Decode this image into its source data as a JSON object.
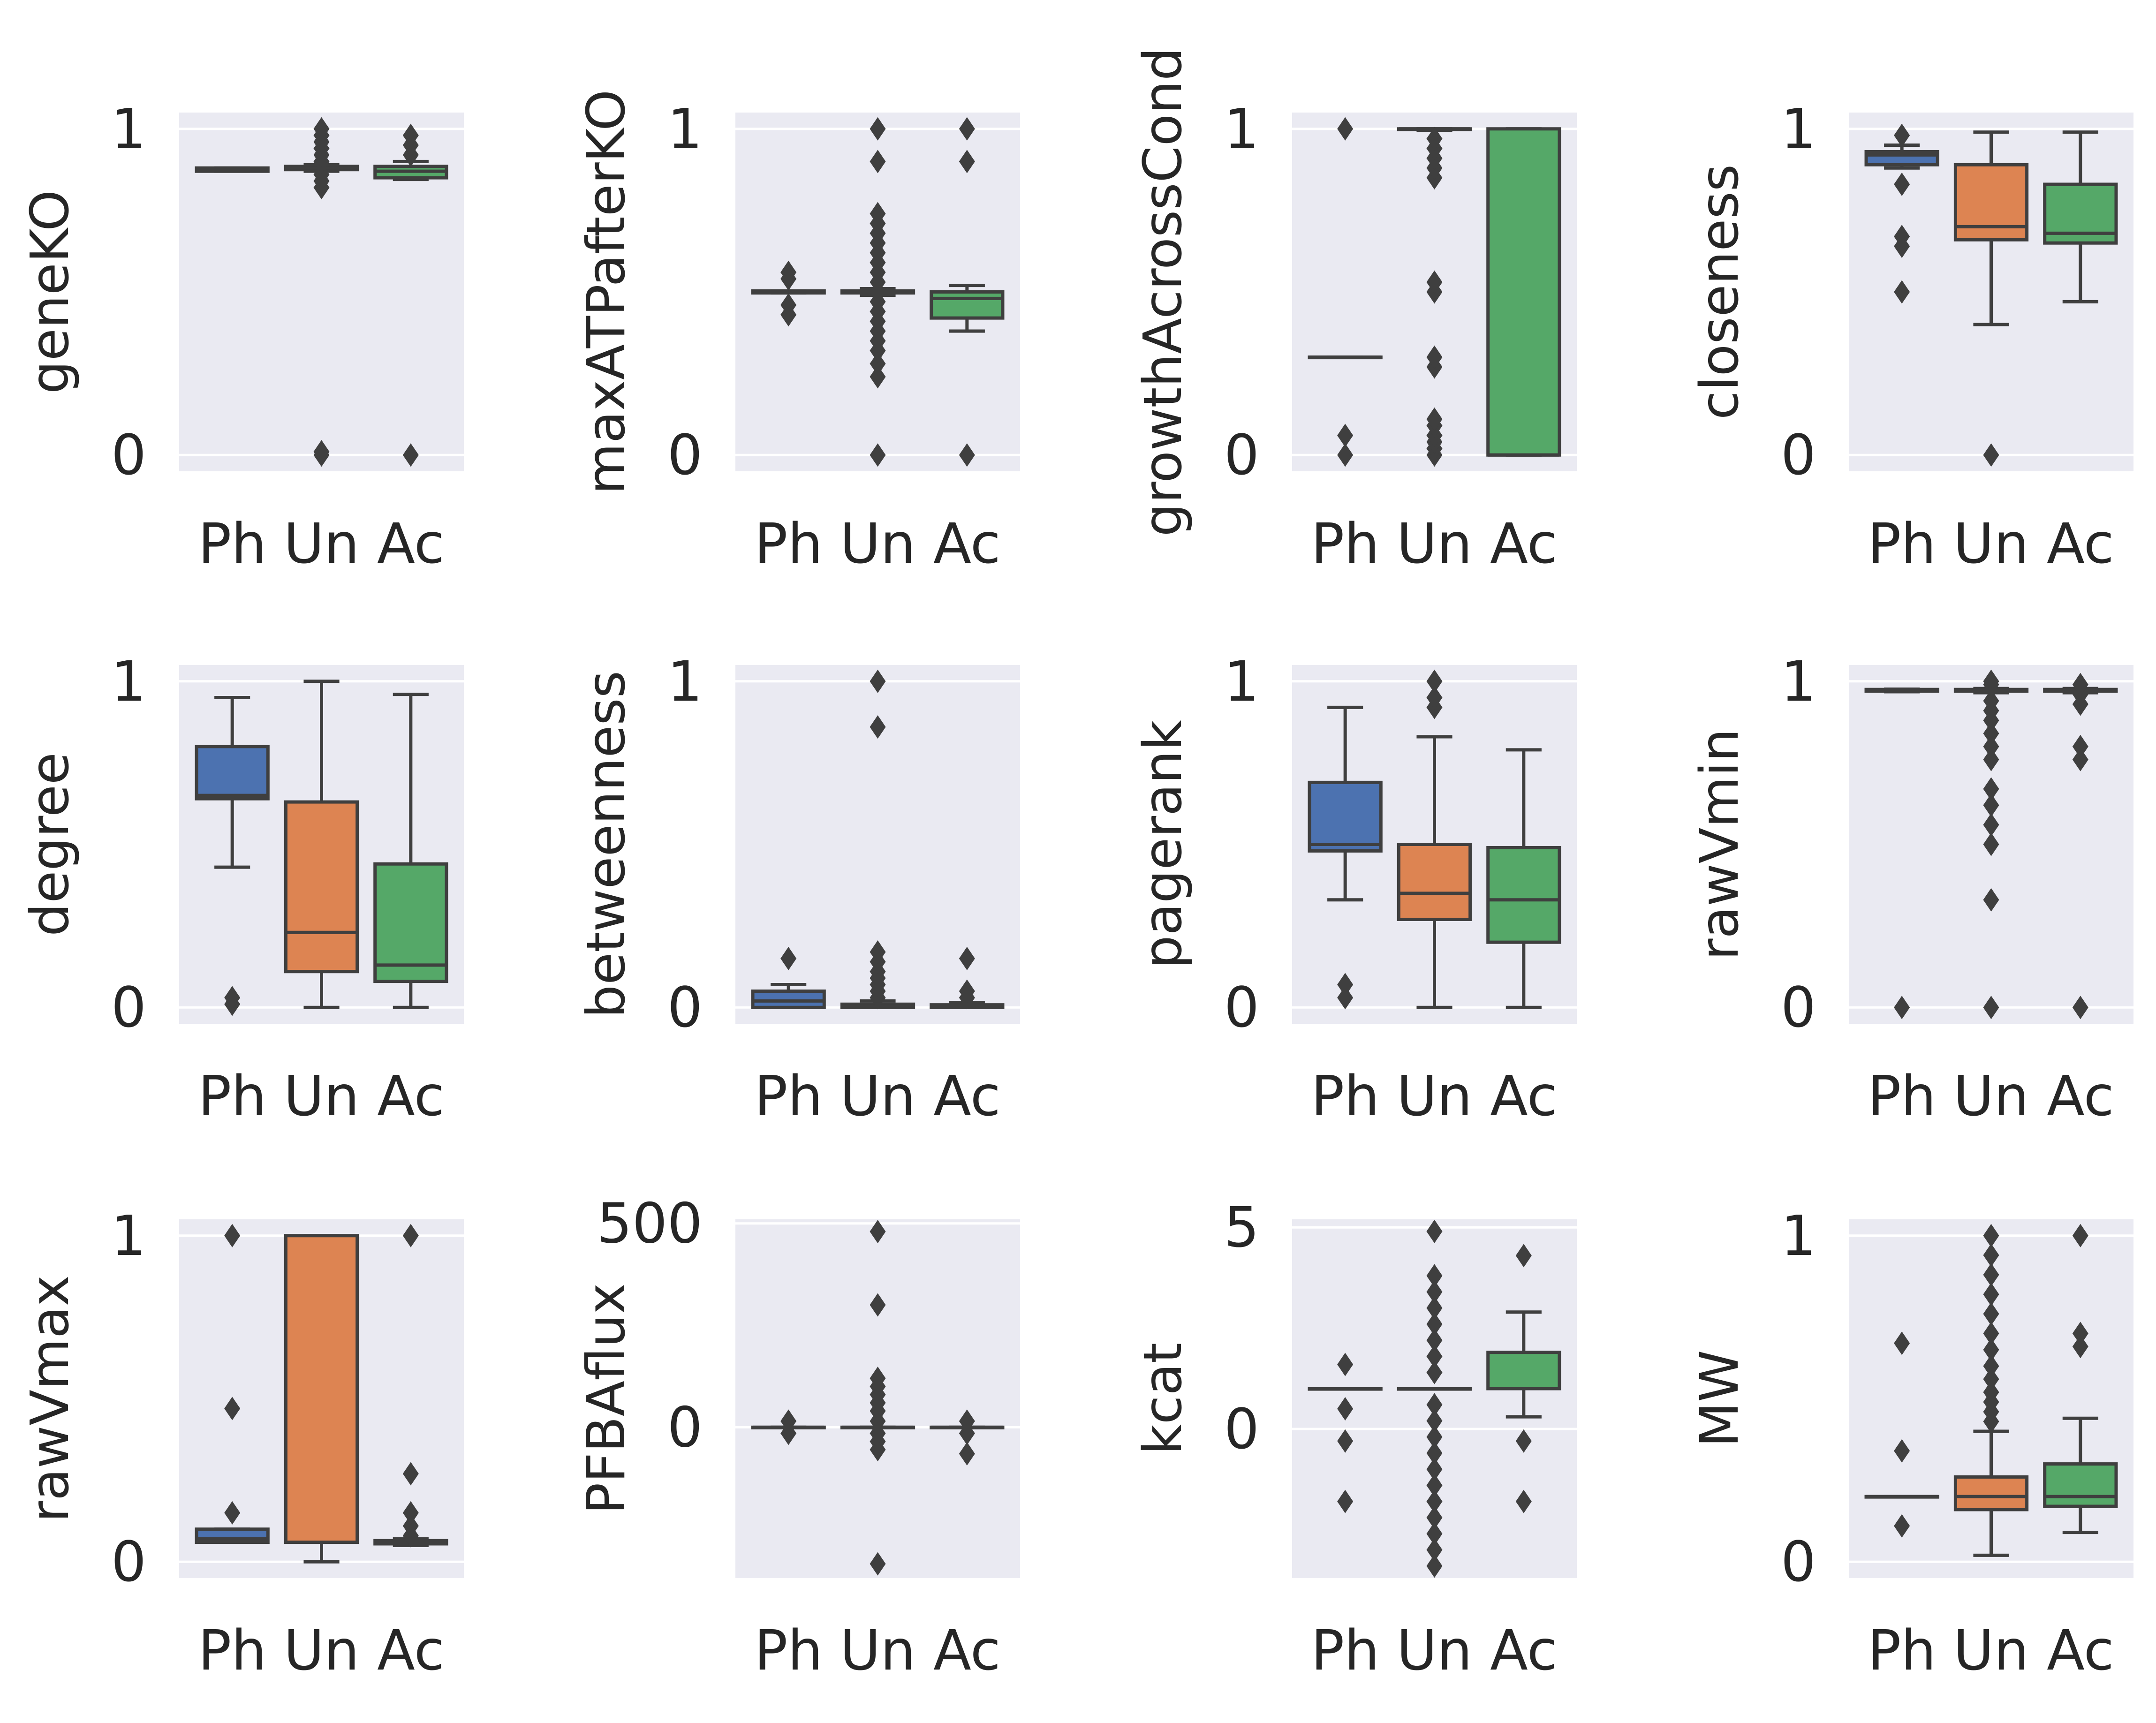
{
  "figure": {
    "panel_bg": "#eaeaf2",
    "grid_color": "#ffffff",
    "line_color": "#3f3f3f"
  },
  "chart_data": [
    {
      "type": "box",
      "title": "",
      "xlabel": "",
      "ylabel": "geneKO",
      "categories": [
        "Ph",
        "Un",
        "Ac"
      ],
      "ylim": [
        -0.05,
        1.05
      ],
      "yticks": [
        0,
        1
      ],
      "ytick_labels": [
        "0",
        "1"
      ],
      "boxes": [
        {
          "category": "Ph",
          "color": "#4c72b0",
          "q1": 0.87,
          "median": 0.875,
          "q3": 0.88,
          "whisker_low": 0.87,
          "whisker_high": 0.88,
          "outliers": []
        },
        {
          "category": "Un",
          "color": "#dd8452",
          "q1": 0.875,
          "median": 0.88,
          "q3": 0.885,
          "whisker_low": 0.87,
          "whisker_high": 0.89,
          "outliers": [
            0.0,
            0.01,
            0.82,
            0.84,
            0.86,
            0.9,
            0.92,
            0.94,
            0.96,
            0.98,
            1.0
          ]
        },
        {
          "category": "Ac",
          "color": "#55a868",
          "q1": 0.85,
          "median": 0.87,
          "q3": 0.885,
          "whisker_low": 0.845,
          "whisker_high": 0.9,
          "outliers": [
            0.0,
            0.92,
            0.95,
            0.98
          ]
        }
      ]
    },
    {
      "type": "box",
      "title": "",
      "xlabel": "",
      "ylabel": "maxATPafterKO",
      "categories": [
        "Ph",
        "Un",
        "Ac"
      ],
      "ylim": [
        -0.05,
        1.05
      ],
      "yticks": [
        0,
        1
      ],
      "ytick_labels": [
        "0",
        "1"
      ],
      "boxes": [
        {
          "category": "Ph",
          "color": "#4c72b0",
          "q1": 0.497,
          "median": 0.5,
          "q3": 0.503,
          "whisker_low": 0.497,
          "whisker_high": 0.503,
          "outliers": [
            0.43,
            0.46,
            0.54,
            0.56
          ]
        },
        {
          "category": "Un",
          "color": "#dd8452",
          "q1": 0.497,
          "median": 0.5,
          "q3": 0.503,
          "whisker_low": 0.49,
          "whisker_high": 0.51,
          "outliers": [
            0.0,
            0.24,
            0.28,
            0.32,
            0.35,
            0.38,
            0.41,
            0.44,
            0.47,
            0.53,
            0.56,
            0.59,
            0.62,
            0.65,
            0.68,
            0.71,
            0.74,
            0.9,
            1.0
          ]
        },
        {
          "category": "Ac",
          "color": "#55a868",
          "q1": 0.42,
          "median": 0.48,
          "q3": 0.5,
          "whisker_low": 0.38,
          "whisker_high": 0.52,
          "outliers": [
            0.0,
            0.9,
            1.0
          ]
        }
      ]
    },
    {
      "type": "box",
      "title": "",
      "xlabel": "",
      "ylabel": "growthAcrossCond",
      "categories": [
        "Ph",
        "Un",
        "Ac"
      ],
      "ylim": [
        -0.05,
        1.05
      ],
      "yticks": [
        0,
        1
      ],
      "ytick_labels": [
        "0",
        "1"
      ],
      "boxes": [
        {
          "category": "Ph",
          "color": "#4c72b0",
          "q1": 0.3,
          "median": 0.3,
          "q3": 0.3,
          "whisker_low": 0.3,
          "whisker_high": 0.3,
          "outliers": [
            0.0,
            0.06,
            1.0
          ]
        },
        {
          "category": "Un",
          "color": "#dd8452",
          "q1": 0.998,
          "median": 1.0,
          "q3": 1.0,
          "whisker_low": 0.996,
          "whisker_high": 1.0,
          "outliers": [
            0.0,
            0.02,
            0.04,
            0.06,
            0.09,
            0.11,
            0.27,
            0.3,
            0.5,
            0.53,
            0.85,
            0.88,
            0.91,
            0.94,
            0.97
          ]
        },
        {
          "category": "Ac",
          "color": "#55a868",
          "q1": 0.0,
          "median": 0.0,
          "q3": 1.0,
          "whisker_low": 0.0,
          "whisker_high": 1.0,
          "outliers": []
        }
      ]
    },
    {
      "type": "box",
      "title": "",
      "xlabel": "",
      "ylabel": "closeness",
      "categories": [
        "Ph",
        "Un",
        "Ac"
      ],
      "ylim": [
        -0.05,
        1.05
      ],
      "yticks": [
        0,
        1
      ],
      "ytick_labels": [
        "0",
        "1"
      ],
      "boxes": [
        {
          "category": "Ph",
          "color": "#4c72b0",
          "q1": 0.89,
          "median": 0.92,
          "q3": 0.93,
          "whisker_low": 0.88,
          "whisker_high": 0.95,
          "outliers": [
            0.5,
            0.64,
            0.67,
            0.83,
            0.98
          ]
        },
        {
          "category": "Un",
          "color": "#dd8452",
          "q1": 0.66,
          "median": 0.7,
          "q3": 0.89,
          "whisker_low": 0.4,
          "whisker_high": 0.99,
          "outliers": [
            0.0
          ]
        },
        {
          "category": "Ac",
          "color": "#55a868",
          "q1": 0.65,
          "median": 0.68,
          "q3": 0.83,
          "whisker_low": 0.47,
          "whisker_high": 0.99,
          "outliers": []
        }
      ]
    },
    {
      "type": "box",
      "title": "",
      "xlabel": "",
      "ylabel": "degree",
      "categories": [
        "Ph",
        "Un",
        "Ac"
      ],
      "ylim": [
        -0.05,
        1.05
      ],
      "yticks": [
        0,
        1
      ],
      "ytick_labels": [
        "0",
        "1"
      ],
      "boxes": [
        {
          "category": "Ph",
          "color": "#4c72b0",
          "q1": 0.64,
          "median": 0.65,
          "q3": 0.8,
          "whisker_low": 0.43,
          "whisker_high": 0.95,
          "outliers": [
            0.01,
            0.03
          ]
        },
        {
          "category": "Un",
          "color": "#dd8452",
          "q1": 0.11,
          "median": 0.23,
          "q3": 0.63,
          "whisker_low": 0.0,
          "whisker_high": 1.0,
          "outliers": []
        },
        {
          "category": "Ac",
          "color": "#55a868",
          "q1": 0.08,
          "median": 0.13,
          "q3": 0.44,
          "whisker_low": 0.0,
          "whisker_high": 0.96,
          "outliers": []
        }
      ]
    },
    {
      "type": "box",
      "title": "",
      "xlabel": "",
      "ylabel": "betweenness",
      "categories": [
        "Ph",
        "Un",
        "Ac"
      ],
      "ylim": [
        -0.05,
        1.05
      ],
      "yticks": [
        0,
        1
      ],
      "ytick_labels": [
        "0",
        "1"
      ],
      "boxes": [
        {
          "category": "Ph",
          "color": "#4c72b0",
          "q1": 0.0,
          "median": 0.02,
          "q3": 0.05,
          "whisker_low": 0.0,
          "whisker_high": 0.07,
          "outliers": [
            0.15
          ]
        },
        {
          "category": "Un",
          "color": "#dd8452",
          "q1": 0.0,
          "median": 0.005,
          "q3": 0.01,
          "whisker_low": 0.0,
          "whisker_high": 0.02,
          "outliers": [
            0.03,
            0.05,
            0.07,
            0.09,
            0.11,
            0.14,
            0.17,
            0.86,
            1.0
          ]
        },
        {
          "category": "Ac",
          "color": "#55a868",
          "q1": 0.0,
          "median": 0.003,
          "q3": 0.008,
          "whisker_low": 0.0,
          "whisker_high": 0.015,
          "outliers": [
            0.03,
            0.05,
            0.15
          ]
        }
      ]
    },
    {
      "type": "box",
      "title": "",
      "xlabel": "",
      "ylabel": "pagerank",
      "categories": [
        "Ph",
        "Un",
        "Ac"
      ],
      "ylim": [
        -0.05,
        1.05
      ],
      "yticks": [
        0,
        1
      ],
      "ytick_labels": [
        "0",
        "1"
      ],
      "boxes": [
        {
          "category": "Ph",
          "color": "#4c72b0",
          "q1": 0.48,
          "median": 0.5,
          "q3": 0.69,
          "whisker_low": 0.33,
          "whisker_high": 0.92,
          "outliers": [
            0.03,
            0.07
          ]
        },
        {
          "category": "Un",
          "color": "#dd8452",
          "q1": 0.27,
          "median": 0.35,
          "q3": 0.5,
          "whisker_low": 0.0,
          "whisker_high": 0.83,
          "outliers": [
            0.92,
            0.95,
            1.0
          ]
        },
        {
          "category": "Ac",
          "color": "#55a868",
          "q1": 0.2,
          "median": 0.33,
          "q3": 0.49,
          "whisker_low": 0.0,
          "whisker_high": 0.79,
          "outliers": []
        }
      ]
    },
    {
      "type": "box",
      "title": "",
      "xlabel": "",
      "ylabel": "rawVmin",
      "categories": [
        "Ph",
        "Un",
        "Ac"
      ],
      "ylim": [
        -0.05,
        1.05
      ],
      "yticks": [
        0,
        1
      ],
      "ytick_labels": [
        "0",
        "1"
      ],
      "boxes": [
        {
          "category": "Ph",
          "color": "#4c72b0",
          "q1": 0.97,
          "median": 0.972,
          "q3": 0.975,
          "whisker_low": 0.968,
          "whisker_high": 0.976,
          "outliers": [
            0.0
          ]
        },
        {
          "category": "Un",
          "color": "#dd8452",
          "q1": 0.97,
          "median": 0.972,
          "q3": 0.975,
          "whisker_low": 0.965,
          "whisker_high": 0.978,
          "outliers": [
            0.0,
            0.33,
            0.5,
            0.56,
            0.62,
            0.67,
            0.76,
            0.8,
            0.84,
            0.88,
            0.91,
            0.94,
            0.99,
            1.0
          ]
        },
        {
          "category": "Ac",
          "color": "#55a868",
          "q1": 0.97,
          "median": 0.972,
          "q3": 0.975,
          "whisker_low": 0.965,
          "whisker_high": 0.978,
          "outliers": [
            0.0,
            0.76,
            0.8,
            0.93,
            0.96,
            0.99
          ]
        }
      ]
    },
    {
      "type": "box",
      "title": "",
      "xlabel": "",
      "ylabel": "rawVmax",
      "categories": [
        "Ph",
        "Un",
        "Ac"
      ],
      "ylim": [
        -0.05,
        1.05
      ],
      "yticks": [
        0,
        1
      ],
      "ytick_labels": [
        "0",
        "1"
      ],
      "boxes": [
        {
          "category": "Ph",
          "color": "#4c72b0",
          "q1": 0.06,
          "median": 0.07,
          "q3": 0.1,
          "whisker_low": 0.06,
          "whisker_high": 0.1,
          "outliers": [
            0.15,
            0.47,
            1.0
          ]
        },
        {
          "category": "Un",
          "color": "#dd8452",
          "q1": 0.06,
          "median": 0.06,
          "q3": 1.0,
          "whisker_low": 0.0,
          "whisker_high": 1.0,
          "outliers": []
        },
        {
          "category": "Ac",
          "color": "#55a868",
          "q1": 0.055,
          "median": 0.06,
          "q3": 0.065,
          "whisker_low": 0.05,
          "whisker_high": 0.07,
          "outliers": [
            0.08,
            0.11,
            0.15,
            0.27,
            1.0
          ]
        }
      ]
    },
    {
      "type": "box",
      "title": "",
      "xlabel": "",
      "ylabel": "PFBAflux",
      "categories": [
        "Ph",
        "Un",
        "Ac"
      ],
      "ylim": [
        -370,
        510
      ],
      "yticks": [
        0,
        500
      ],
      "ytick_labels": [
        "0",
        "500"
      ],
      "boxes": [
        {
          "category": "Ph",
          "color": "#4c72b0",
          "q1": 0,
          "median": 0,
          "q3": 0,
          "whisker_low": 0,
          "whisker_high": 0,
          "outliers": [
            -15,
            15
          ]
        },
        {
          "category": "Un",
          "color": "#dd8452",
          "q1": 0,
          "median": 0,
          "q3": 0,
          "whisker_low": 0,
          "whisker_high": 0,
          "outliers": [
            -335,
            -55,
            -35,
            -15,
            15,
            40,
            60,
            80,
            100,
            120,
            300,
            480
          ]
        },
        {
          "category": "Ac",
          "color": "#55a868",
          "q1": 0,
          "median": 0,
          "q3": 0,
          "whisker_low": 0,
          "whisker_high": 0,
          "outliers": [
            -65,
            -15,
            15
          ]
        }
      ]
    },
    {
      "type": "box",
      "title": "",
      "xlabel": "",
      "ylabel": "kcat",
      "categories": [
        "Ph",
        "Un",
        "Ac"
      ],
      "ylim": [
        -3.7,
        5.2
      ],
      "yticks": [
        0,
        5
      ],
      "ytick_labels": [
        "0",
        "5"
      ],
      "boxes": [
        {
          "category": "Ph",
          "color": "#4c72b0",
          "q1": 1.0,
          "median": 1.0,
          "q3": 1.0,
          "whisker_low": 1.0,
          "whisker_high": 1.0,
          "outliers": [
            -1.8,
            -0.3,
            0.5,
            1.6
          ]
        },
        {
          "category": "Un",
          "color": "#dd8452",
          "q1": 1.0,
          "median": 1.0,
          "q3": 1.0,
          "whisker_low": 1.0,
          "whisker_high": 1.0,
          "outliers": [
            -3.4,
            -3.0,
            -2.6,
            -2.2,
            -1.8,
            -1.4,
            -1.0,
            -0.6,
            -0.2,
            0.2,
            0.6,
            1.4,
            1.8,
            2.2,
            2.6,
            3.0,
            3.4,
            3.8,
            4.9
          ]
        },
        {
          "category": "Ac",
          "color": "#55a868",
          "q1": 1.0,
          "median": 1.0,
          "q3": 1.9,
          "whisker_low": 0.3,
          "whisker_high": 2.9,
          "outliers": [
            -1.8,
            -0.3,
            4.3
          ]
        }
      ]
    },
    {
      "type": "box",
      "title": "",
      "xlabel": "",
      "ylabel": "MW",
      "categories": [
        "Ph",
        "Un",
        "Ac"
      ],
      "ylim": [
        -0.05,
        1.05
      ],
      "yticks": [
        0,
        1
      ],
      "ytick_labels": [
        "0",
        "1"
      ],
      "boxes": [
        {
          "category": "Ph",
          "color": "#4c72b0",
          "q1": 0.2,
          "median": 0.2,
          "q3": 0.2,
          "whisker_low": 0.2,
          "whisker_high": 0.2,
          "outliers": [
            0.11,
            0.34,
            0.67
          ]
        },
        {
          "category": "Un",
          "color": "#dd8452",
          "q1": 0.16,
          "median": 0.2,
          "q3": 0.26,
          "whisker_low": 0.02,
          "whisker_high": 0.4,
          "outliers": [
            0.43,
            0.46,
            0.49,
            0.52,
            0.56,
            0.6,
            0.65,
            0.7,
            0.76,
            0.82,
            0.88,
            0.94,
            1.0
          ]
        },
        {
          "category": "Ac",
          "color": "#55a868",
          "q1": 0.17,
          "median": 0.2,
          "q3": 0.3,
          "whisker_low": 0.09,
          "whisker_high": 0.44,
          "outliers": [
            0.66,
            0.7,
            1.0
          ]
        }
      ]
    }
  ]
}
